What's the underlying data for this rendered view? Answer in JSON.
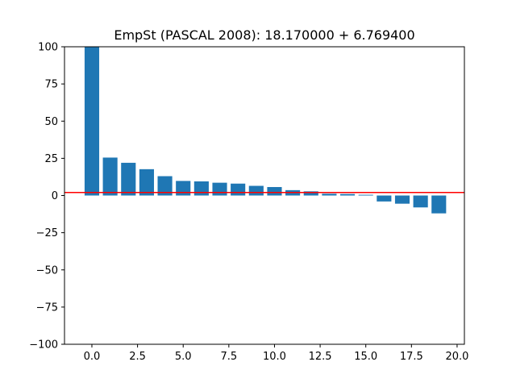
{
  "chart_data": {
    "type": "bar",
    "title": "EmpSt (PASCAL 2008): 18.170000 + 6.769400",
    "xlabel": "",
    "ylabel": "",
    "x": [
      0,
      1,
      2,
      3,
      4,
      5,
      6,
      7,
      8,
      9,
      10,
      11,
      12,
      13,
      14,
      15,
      16,
      17,
      18,
      19
    ],
    "values": [
      100,
      25.5,
      22,
      17.7,
      13,
      9.8,
      9.5,
      8.6,
      8.0,
      6.5,
      5.7,
      3.6,
      2.8,
      1.2,
      1.0,
      0.5,
      -4,
      -5.5,
      -8,
      -12
    ],
    "xlim": [
      -1.5,
      20.4
    ],
    "ylim": [
      -100,
      100
    ],
    "xticks": [
      0.0,
      2.5,
      5.0,
      7.5,
      10.0,
      12.5,
      15.0,
      17.5,
      20.0
    ],
    "xtick_labels": [
      "0.0",
      "2.5",
      "5.0",
      "7.5",
      "10.0",
      "12.5",
      "15.0",
      "17.5",
      "20.0"
    ],
    "yticks": [
      100,
      75,
      50,
      25,
      0,
      -25,
      -50,
      -75,
      -100
    ],
    "ytick_labels": [
      "100",
      "75",
      "50",
      "25",
      "0",
      "−25",
      "−50",
      "−75",
      "−100"
    ],
    "reference_line": {
      "y": 2,
      "color": "#ff0000"
    },
    "bar_color": "#1f77b4",
    "grid": false
  }
}
